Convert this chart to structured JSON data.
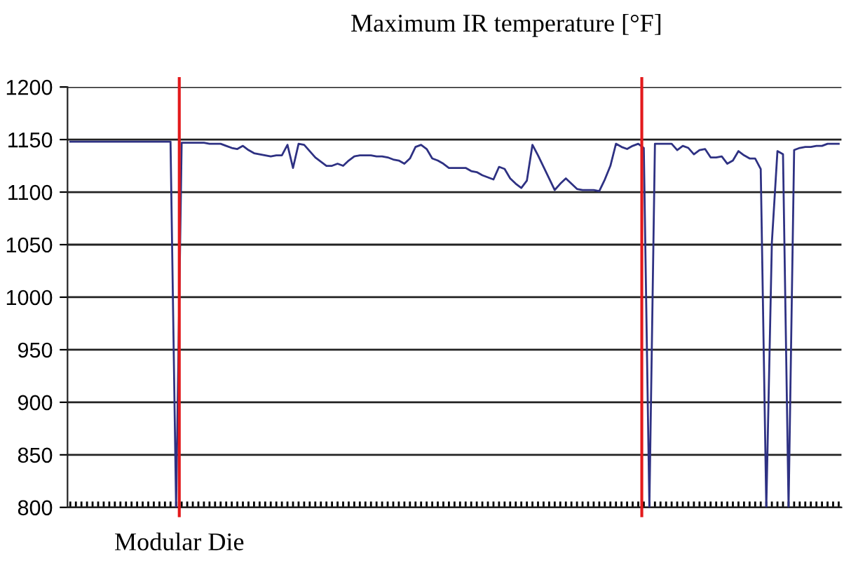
{
  "chart_data": {
    "type": "line",
    "title": "Maximum IR temperature [°F]",
    "categories": [
      null,
      null,
      null,
      null,
      null,
      null,
      null,
      null,
      null,
      null,
      null,
      null,
      null,
      null,
      null,
      null,
      null,
      null,
      null,
      null,
      null,
      null,
      null,
      null,
      null,
      null,
      null,
      null,
      null,
      null,
      null,
      null,
      null,
      null,
      null,
      null,
      null,
      null,
      null,
      null,
      null,
      null,
      null,
      null,
      null,
      null,
      null,
      null,
      null,
      null,
      null,
      null,
      null,
      null,
      null,
      null,
      null,
      null,
      null,
      null,
      null,
      null,
      null,
      null,
      null,
      null,
      null,
      null,
      null,
      null,
      null,
      null,
      null,
      null,
      null,
      null,
      null,
      null,
      null,
      null,
      null,
      null,
      null,
      null,
      null,
      null,
      null,
      null,
      null,
      null,
      null,
      null,
      null,
      null,
      null,
      null,
      null,
      null,
      null,
      null,
      null,
      null,
      null,
      null,
      null,
      null,
      null,
      null,
      null,
      null,
      null,
      null,
      null,
      null,
      null,
      null,
      null,
      null,
      null,
      null,
      null,
      null,
      null,
      null,
      null,
      null,
      null,
      null,
      null,
      null,
      null,
      null,
      null,
      null,
      null,
      null,
      null,
      null,
      null
    ],
    "series": [
      {
        "color": "#2e3183",
        "values": [
          1148,
          1148,
          1148,
          1148,
          1148,
          1148,
          1148,
          1148,
          1148,
          1148,
          1148,
          1148,
          1148,
          1148,
          1148,
          1148,
          1148,
          1148,
          1148,
          800,
          1147,
          1147,
          1147,
          1147,
          1147,
          1146,
          1146,
          1146,
          1144,
          1142,
          1141,
          1144,
          1140,
          1137,
          1136,
          1135,
          1134,
          1135,
          1135,
          1145,
          1123,
          1146,
          1145,
          1139,
          1133,
          1129,
          1125,
          1125,
          1127,
          1125,
          1130,
          1134,
          1135,
          1135,
          1135,
          1134,
          1134,
          1133,
          1131,
          1130,
          1127,
          1132,
          1143,
          1145,
          1141,
          1132,
          1130,
          1127,
          1123,
          1123,
          1123,
          1123,
          1120,
          1119,
          1116,
          1114,
          1112,
          1124,
          1122,
          1113,
          1108,
          1104,
          1111,
          1145,
          1135,
          1124,
          1113,
          1102,
          1108,
          1113,
          1108,
          1103,
          1102,
          1102,
          1102,
          1101,
          1112,
          1125,
          1146,
          1143,
          1141,
          1144,
          1146,
          1142,
          800,
          1146,
          1146,
          1146,
          1146,
          1140,
          1144,
          1142,
          1136,
          1140,
          1141,
          1133,
          1133,
          1134,
          1127,
          1130,
          1139,
          1135,
          1132,
          1132,
          1122,
          800,
          1052,
          1139,
          1136,
          800,
          1140,
          1142,
          1143,
          1143,
          1144,
          1144,
          1146,
          1146,
          1146
        ]
      }
    ],
    "ylim": [
      800,
      1200
    ],
    "yticks": [
      800,
      850,
      900,
      950,
      1000,
      1050,
      1100,
      1150,
      1200
    ],
    "grid": "y",
    "tick_labels": "y",
    "marker": "none",
    "line_style": "solid",
    "annotations": [
      "Modular Die"
    ]
  }
}
